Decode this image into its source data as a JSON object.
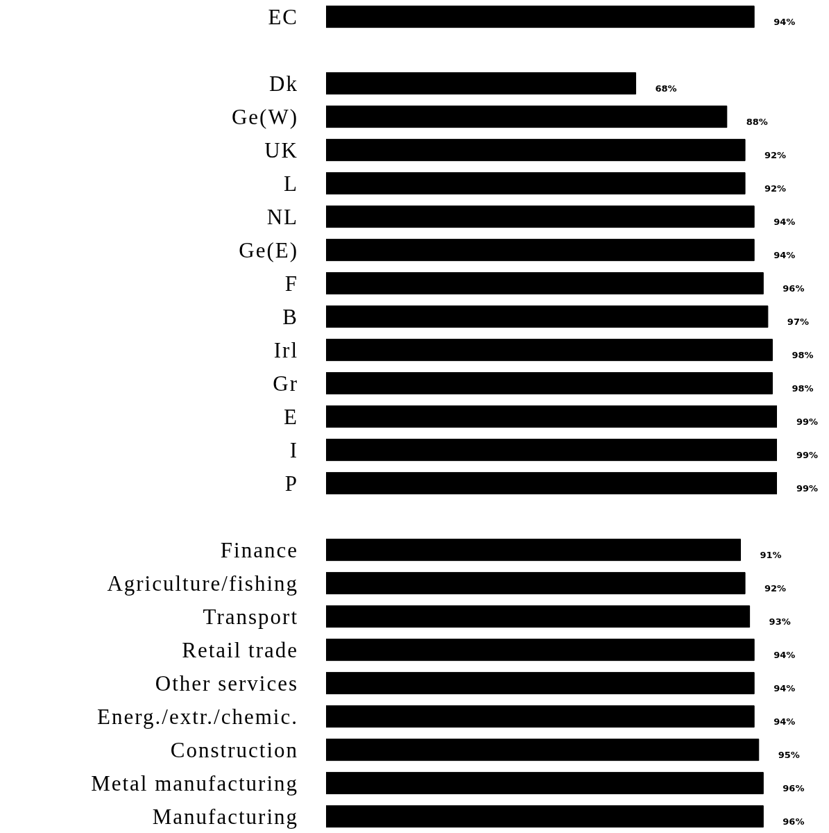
{
  "chart_data": {
    "type": "bar",
    "orientation": "horizontal",
    "tick_labels": "y",
    "color": "#000000",
    "categories": [
      "EC",
      null,
      "Dk",
      "Ge(W)",
      "UK",
      "L",
      "NL",
      "Ge(E)",
      "F",
      "B",
      "Irl",
      "Gr",
      "E",
      "I",
      "P",
      null,
      "Finance",
      "Agriculture/fishing",
      "Transport",
      "Retail trade",
      "Other services",
      "Energ./extr./chemic.",
      "Construction",
      "Metal manufacturing",
      "Manufacturing"
    ],
    "values": [
      94,
      null,
      68,
      88,
      92,
      92,
      94,
      94,
      96,
      97,
      98,
      98,
      99,
      99,
      99,
      null,
      91,
      92,
      93,
      94,
      94,
      94,
      95,
      96,
      96
    ],
    "value_labels": [
      "94%",
      null,
      "68%",
      "88%",
      "92%",
      "92%",
      "94%",
      "94%",
      "96%",
      "97%",
      "98%",
      "98%",
      "99%",
      "99%",
      "99%",
      null,
      "91%",
      "92%",
      "93%",
      "94%",
      "94%",
      "94%",
      "95%",
      "96%",
      "96%"
    ]
  }
}
